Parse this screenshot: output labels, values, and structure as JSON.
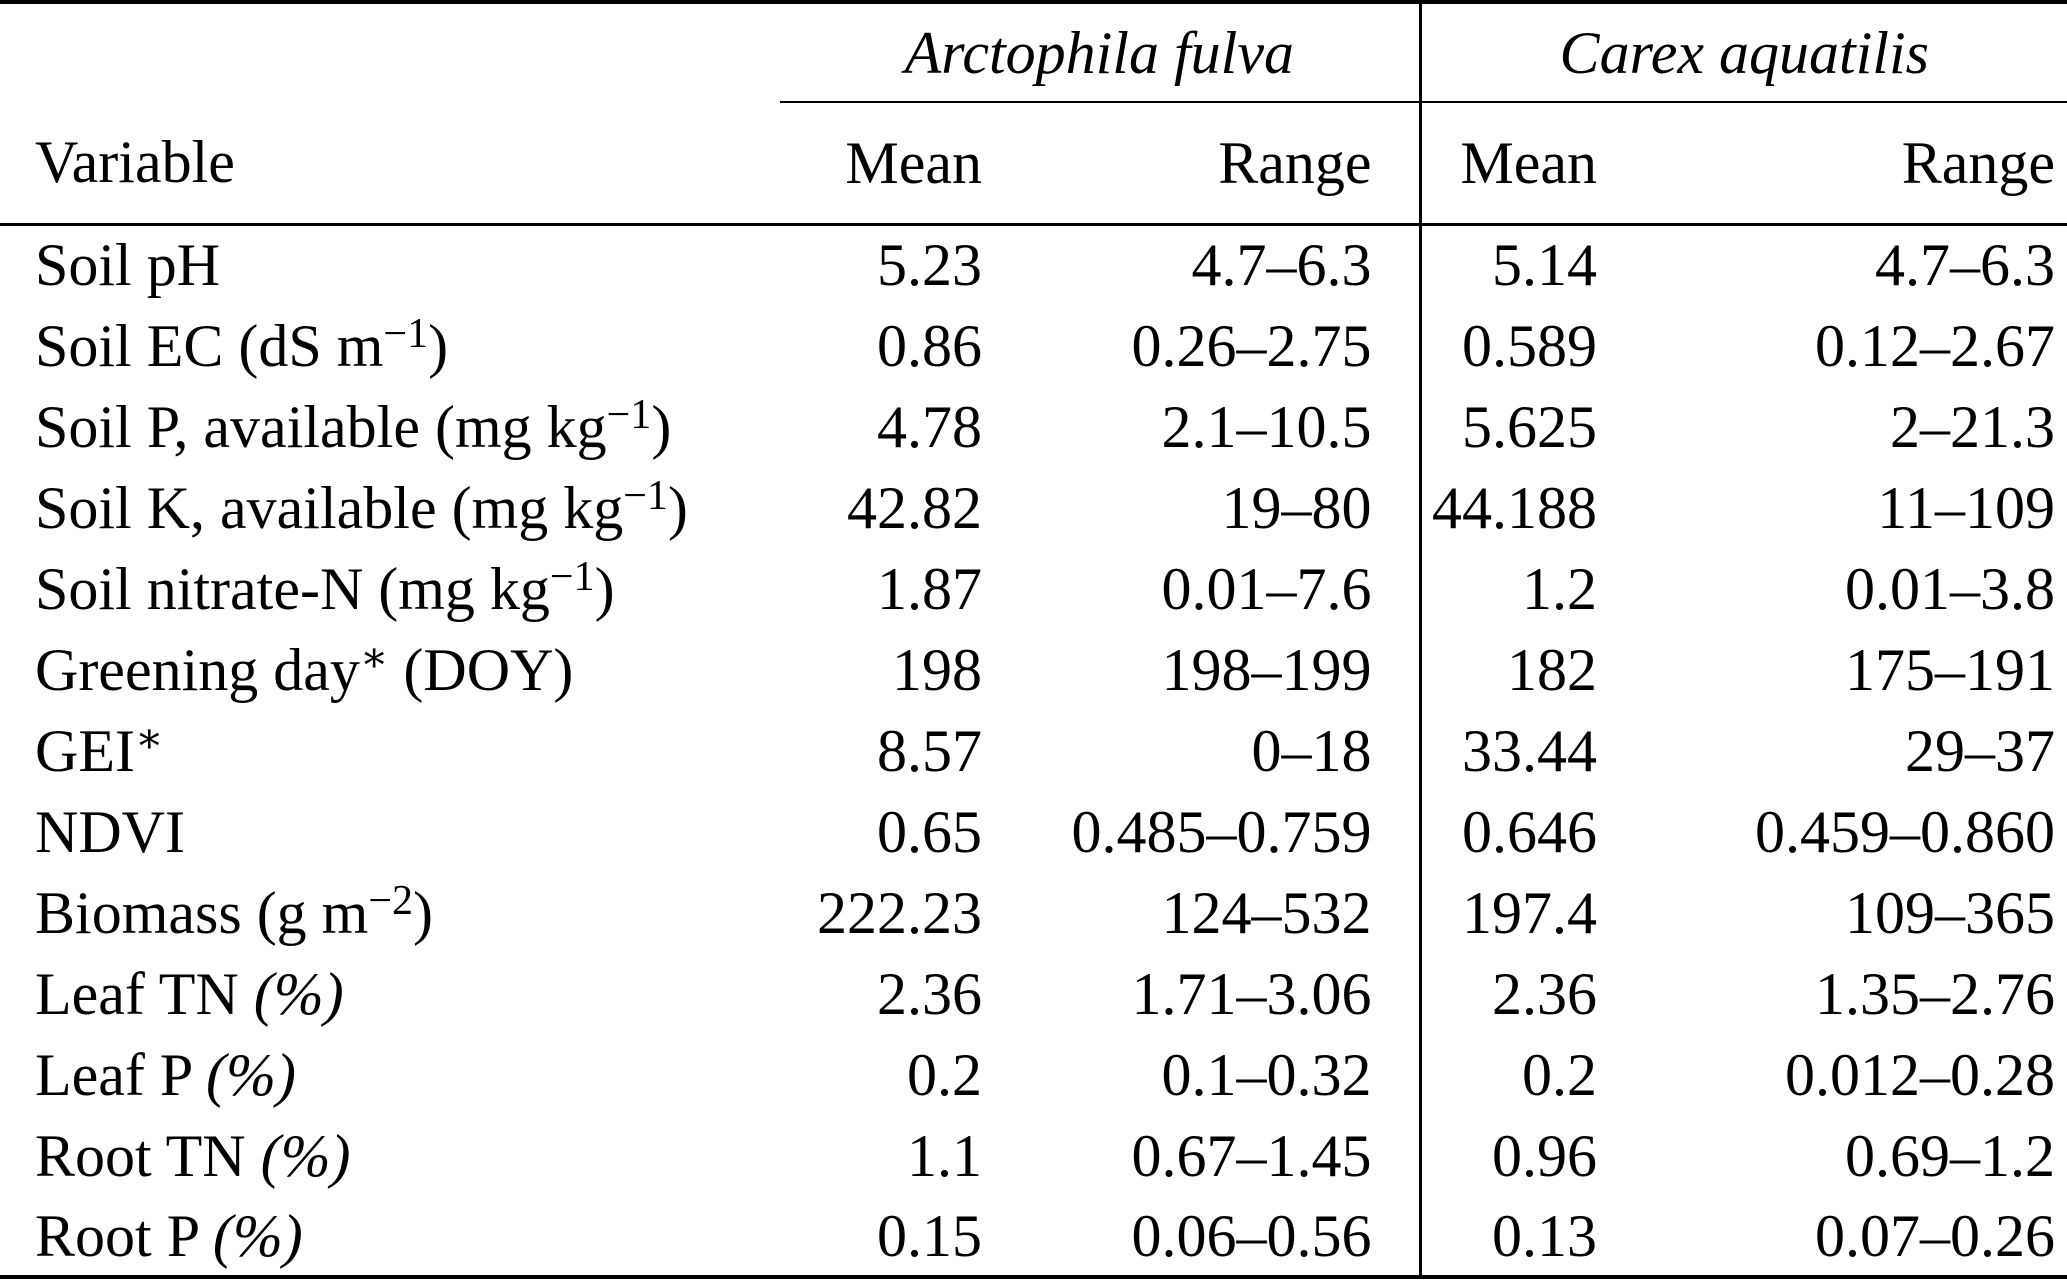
{
  "page": {
    "background": "#ffffff",
    "text_color": "#000000"
  },
  "table": {
    "type": "table",
    "group_headers": [
      {
        "label": "Arctophila fulva"
      },
      {
        "label": "Carex aquatilis"
      }
    ],
    "column_headers": {
      "variable": "Variable",
      "mean": "Mean",
      "range": "Range"
    },
    "rows": [
      {
        "label": [
          {
            "t": "Soil pH"
          }
        ],
        "values": [
          "5.23",
          "4.7–6.3",
          "5.14",
          "4.7–6.3"
        ]
      },
      {
        "label": [
          {
            "t": "Soil EC (dS m"
          },
          {
            "sup": "−1"
          },
          {
            "t": ")"
          }
        ],
        "values": [
          "0.86",
          "0.26–2.75",
          "0.589",
          "0.12–2.67"
        ]
      },
      {
        "label": [
          {
            "t": "Soil P, available (mg kg"
          },
          {
            "sup": "−1"
          },
          {
            "t": ")"
          }
        ],
        "values": [
          "4.78",
          "2.1–10.5",
          "5.625",
          "2–21.3"
        ]
      },
      {
        "label": [
          {
            "t": "Soil K, available (mg kg"
          },
          {
            "sup": "−1"
          },
          {
            "t": ")"
          }
        ],
        "values": [
          "42.82",
          "19–80",
          "44.188",
          "11–109"
        ]
      },
      {
        "label": [
          {
            "t": "Soil nitrate-N (mg kg"
          },
          {
            "sup": "−1"
          },
          {
            "t": ")"
          }
        ],
        "values": [
          "1.87",
          "0.01–7.6",
          "1.2",
          "0.01–3.8"
        ]
      },
      {
        "label": [
          {
            "t": "Greening day"
          },
          {
            "sup": "∗"
          },
          {
            "t": " (DOY)"
          }
        ],
        "values": [
          "198",
          "198–199",
          "182",
          "175–191"
        ]
      },
      {
        "label": [
          {
            "t": "GEI"
          },
          {
            "sup": "∗"
          }
        ],
        "values": [
          "8.57",
          "0–18",
          "33.44",
          "29–37"
        ]
      },
      {
        "label": [
          {
            "t": "NDVI"
          }
        ],
        "values": [
          "0.65",
          "0.485–0.759",
          "0.646",
          "0.459–0.860"
        ]
      },
      {
        "label": [
          {
            "t": "Biomass (g m"
          },
          {
            "sup": "−2"
          },
          {
            "t": ")"
          }
        ],
        "values": [
          "222.23",
          "124–532",
          "197.4",
          "109–365"
        ]
      },
      {
        "label": [
          {
            "t": "Leaf TN "
          },
          {
            "it": "(%)"
          }
        ],
        "values": [
          "2.36",
          "1.71–3.06",
          "2.36",
          "1.35–2.76"
        ]
      },
      {
        "label": [
          {
            "t": "Leaf P "
          },
          {
            "it": "(%)"
          }
        ],
        "values": [
          "0.2",
          "0.1–0.32",
          "0.2",
          "0.012–0.28"
        ]
      },
      {
        "label": [
          {
            "t": "Root TN "
          },
          {
            "it": "(%)"
          }
        ],
        "values": [
          "1.1",
          "0.67–1.45",
          "0.96",
          "0.69–1.2"
        ]
      },
      {
        "label": [
          {
            "t": "Root P "
          },
          {
            "it": "(%)"
          }
        ],
        "values": [
          "0.15",
          "0.06–0.56",
          "0.13",
          "0.07–0.26"
        ]
      }
    ]
  }
}
